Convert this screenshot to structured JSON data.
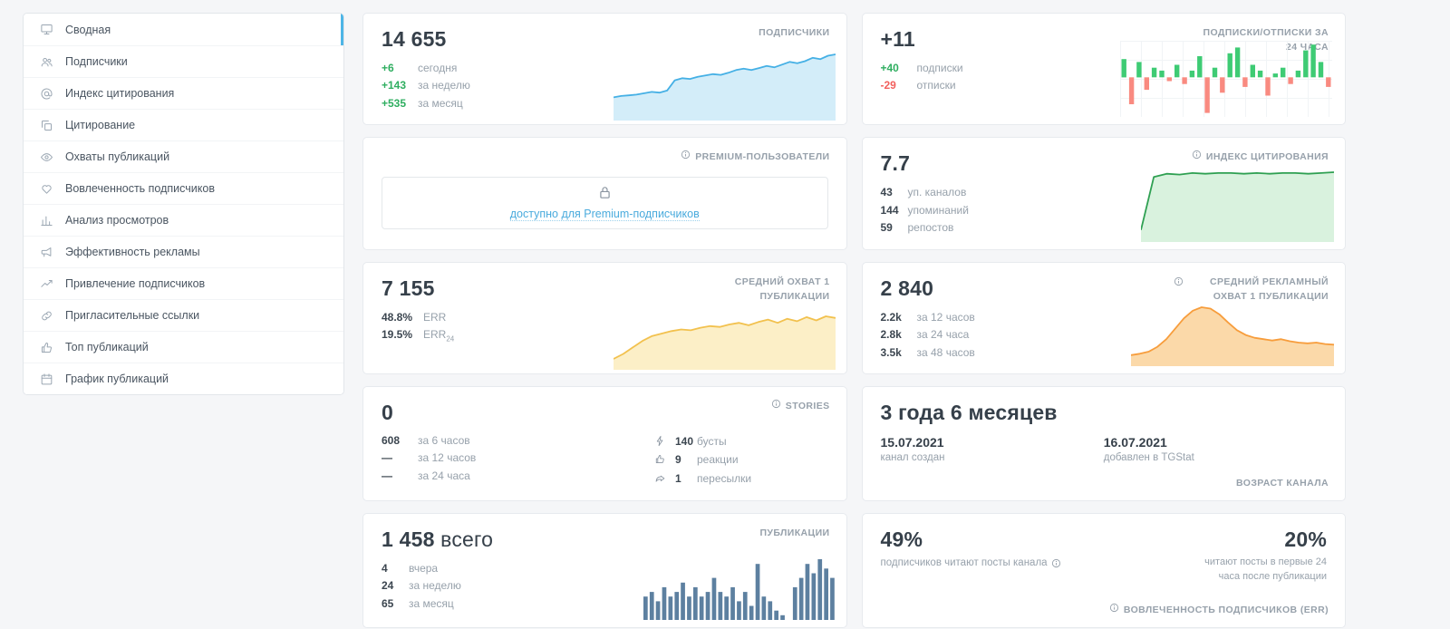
{
  "colors": {
    "accent_blue": "#4db5e6",
    "green": "#2fae60",
    "red": "#f25f5c",
    "link_blue": "#4aabdd"
  },
  "sidebar": {
    "items": [
      {
        "label": "Сводная",
        "icon": "monitor-icon",
        "active": true
      },
      {
        "label": "Подписчики",
        "icon": "users-icon"
      },
      {
        "label": "Индекс цитирования",
        "icon": "at-icon"
      },
      {
        "label": "Цитирование",
        "icon": "copy-icon"
      },
      {
        "label": "Охваты публикаций",
        "icon": "eye-icon"
      },
      {
        "label": "Вовлеченность подписчиков",
        "icon": "heart-icon"
      },
      {
        "label": "Анализ просмотров",
        "icon": "bar-chart-icon"
      },
      {
        "label": "Эффективность рекламы",
        "icon": "megaphone-icon"
      },
      {
        "label": "Привлечение подписчиков",
        "icon": "trend-icon"
      },
      {
        "label": "Пригласительные ссылки",
        "icon": "link-icon"
      },
      {
        "label": "Топ публикаций",
        "icon": "thumb-up-icon"
      },
      {
        "label": "График публикаций",
        "icon": "calendar-icon"
      }
    ]
  },
  "cards": {
    "subscribers": {
      "title": "ПОДПИСЧИКИ",
      "value": "14 655",
      "stats": [
        {
          "value": "+6",
          "label": "сегодня"
        },
        {
          "value": "+143",
          "label": "за неделю"
        },
        {
          "value": "+535",
          "label": "за месяц"
        }
      ],
      "chart": {
        "type": "area",
        "color": "#45b0e5",
        "fill": "#d3edf9",
        "values": [
          30,
          32,
          33,
          34,
          36,
          38,
          37,
          40,
          55,
          58,
          57,
          60,
          62,
          64,
          63,
          66,
          70,
          72,
          70,
          73,
          76,
          74,
          78,
          82,
          80,
          83,
          88,
          86,
          91,
          93
        ]
      }
    },
    "subs_unsubs": {
      "title": "ПОДПИСКИ/ОТПИСКИ ЗА 24 ЧАСА",
      "value": "+11",
      "stats": [
        {
          "value": "+40",
          "label": "подписки"
        },
        {
          "value": "-29",
          "label": "отписки"
        }
      ],
      "chart": {
        "type": "posneg",
        "pos_color": "#3ecb74",
        "neg_color": "#f98a80",
        "values": [
          6,
          -9,
          5,
          -4,
          3,
          2,
          -1,
          4,
          -2,
          2,
          7,
          -12,
          3,
          -5,
          8,
          10,
          -3,
          4,
          2,
          -6,
          1,
          3,
          -2,
          2,
          9,
          11,
          5,
          -3
        ]
      }
    },
    "premium": {
      "title": "PREMIUM-ПОЛЬЗОВАТЕЛИ",
      "link": "доступно для Premium-подписчиков"
    },
    "citation_index": {
      "title": "ИНДЕКС ЦИТИРОВАНИЯ",
      "value": "7.7",
      "stats": [
        {
          "value": "43",
          "label": "уп. каналов"
        },
        {
          "value": "144",
          "label": "упоминаний"
        },
        {
          "value": "59",
          "label": "репостов"
        }
      ],
      "chart": {
        "type": "area",
        "color": "#2fa052",
        "fill": "#d9f2de",
        "values": [
          12,
          80,
          84,
          83,
          85,
          84,
          85,
          85,
          84,
          85,
          84,
          85,
          85,
          84,
          85,
          86
        ]
      }
    },
    "avg_reach": {
      "title": "СРЕДНИЙ ОХВАТ 1 ПУБЛИКАЦИИ",
      "value": "7 155",
      "stats": [
        {
          "value": "48.8%",
          "label": "ERR"
        },
        {
          "value": "19.5%",
          "label": "ERR",
          "sub": "24"
        }
      ],
      "chart": {
        "type": "area",
        "color": "#f2c14e",
        "fill": "#fcefc7",
        "values": [
          10,
          16,
          24,
          32,
          38,
          41,
          44,
          46,
          45,
          48,
          50,
          49,
          52,
          54,
          51,
          55,
          58,
          54,
          59,
          56,
          61,
          57,
          62,
          60
        ]
      }
    },
    "avg_ad_reach": {
      "title": "СРЕДНИЙ РЕКЛАМНЫЙ ОХВАТ 1 ПУБЛИКАЦИИ",
      "value": "2 840",
      "stats": [
        {
          "value": "2.2k",
          "label": "за 12 часов"
        },
        {
          "value": "2.8k",
          "label": "за 24 часа"
        },
        {
          "value": "3.5k",
          "label": "за 48 часов"
        }
      ],
      "chart": {
        "type": "area",
        "color": "#f79d3c",
        "fill": "#fbd9a9",
        "values": [
          12,
          14,
          17,
          24,
          35,
          50,
          65,
          76,
          81,
          79,
          71,
          59,
          48,
          41,
          37,
          35,
          33,
          35,
          32,
          30,
          29,
          30,
          28,
          27
        ]
      }
    },
    "stories": {
      "title": "STORIES",
      "value": "0",
      "left_stats": [
        {
          "value": "608",
          "label": "за 6 часов"
        },
        {
          "value": "—",
          "label": "за 12 часов"
        },
        {
          "value": "—",
          "label": "за 24 часа"
        }
      ],
      "right_stats": [
        {
          "value": "140",
          "label": "бусты",
          "icon": "boost-icon"
        },
        {
          "value": "9",
          "label": "реакции",
          "icon": "reaction-icon"
        },
        {
          "value": "1",
          "label": "пересылки",
          "icon": "forward-icon"
        }
      ]
    },
    "channel_age": {
      "title": "ВОЗРАСТ КАНАЛА",
      "value": "3 года 6 месяцев",
      "created_date": "15.07.2021",
      "created_label": "канал создан",
      "added_date": "16.07.2021",
      "added_label": "добавлен в TGStat"
    },
    "publications": {
      "title": "ПУБЛИКАЦИИ",
      "value": "1 458",
      "value_suffix": "всего",
      "stats": [
        {
          "value": "4",
          "label": "вчера"
        },
        {
          "value": "24",
          "label": "за неделю"
        },
        {
          "value": "65",
          "label": "за месяц"
        }
      ],
      "chart": {
        "type": "bar",
        "color": "#5d80a0",
        "values": [
          5,
          6,
          4,
          7,
          5,
          6,
          8,
          5,
          7,
          5,
          6,
          9,
          6,
          5,
          7,
          4,
          6,
          3,
          12,
          5,
          4,
          2,
          1,
          0,
          7,
          9,
          12,
          10,
          13,
          11,
          9
        ]
      }
    },
    "err": {
      "title": "ВОВЛЕЧЕННОСТЬ ПОДПИСЧИКОВ (ERR)",
      "left_value": "49%",
      "left_label": "подписчиков читают посты канала",
      "right_value": "20%",
      "right_label": "читают посты в первые 24 часа после публикации"
    }
  }
}
